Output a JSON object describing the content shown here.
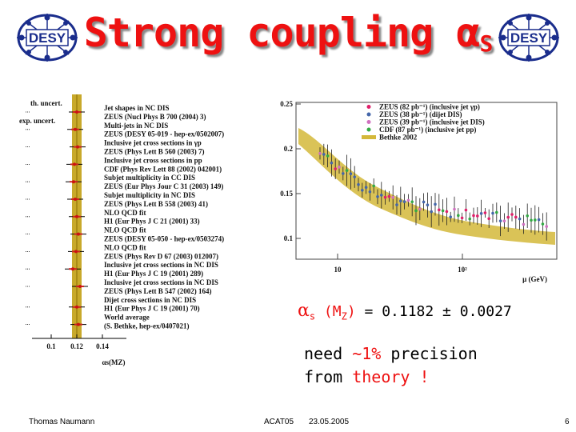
{
  "slide": {
    "title_main": "Strong coupling α",
    "title_sub": "S",
    "logo_text": "DESY",
    "colors": {
      "title": "#ee1111",
      "band": "#c8a92b",
      "highlight": "#ee1111",
      "logo": "#1a2d8c"
    }
  },
  "left_plot": {
    "legend": [
      "th. uncert.",
      "exp. uncert."
    ],
    "entries": [
      "Jet shapes in NC DIS",
      "ZEUS (Nucl Phys B 700 (2004) 3)",
      "Multi-jets in NC DIS",
      "ZEUS (DESY 05-019 - hep-ex/0502007)",
      "Inclusive jet cross sections in γp",
      "ZEUS (Phys Lett B 560 (2003) 7)",
      "Inclusive jet cross sections in pp",
      "CDF (Phys Rev Lett 88 (2002) 042001)",
      "Subjet multiplicity in CC DIS",
      "ZEUS (Eur Phys Jour C 31 (2003) 149)",
      "Subjet multiplicity in NC DIS",
      "ZEUS (Phys Lett B 558 (2003) 41)",
      "NLO QCD fit",
      "H1 (Eur Phys J C 21 (2001) 33)",
      "NLO QCD fit",
      "ZEUS (DESY 05-050 - hep-ex/0503274)",
      "NLO QCD fit",
      "ZEUS (Phys Rev D 67 (2003) 012007)",
      "Inclusive jet cross sections in NC DIS",
      "H1 (Eur Phys J C 19 (2001) 289)",
      "Inclusive jet cross sections in NC DIS",
      "ZEUS (Phys Lett B 547 (2002) 164)",
      "Dijet cross sections in NC DIS",
      "H1 (Eur Phys J C 19 (2001) 70)",
      "World average",
      "(S. Bethke, hep-ex/0407021)"
    ],
    "x_ticks": [
      "0.1",
      "0.12",
      "0.14"
    ],
    "x_label": "αs(MZ)"
  },
  "right_plot": {
    "y_ticks": [
      "0.25",
      "0.2",
      "0.15",
      "0.1"
    ],
    "x_ticks": [
      "10",
      "10²"
    ],
    "x_label": "μ (GeV)",
    "legend": [
      {
        "name": "ZEUS (82 pb⁻¹) (inclusive jet γp)",
        "color": "#e0206a",
        "marker": "circle"
      },
      {
        "name": "ZEUS (38 pb⁻¹) (dijet DIS)",
        "color": "#4466aa",
        "marker": "square"
      },
      {
        "name": "ZEUS (39 pb⁻¹) (inclusive jet DIS)",
        "color": "#d070c0",
        "marker": "triangle"
      },
      {
        "name": "CDF (87 pb⁻¹) (inclusive jet pp)",
        "color": "#33aa44",
        "marker": "triangle-down"
      },
      {
        "name": "Bethke 2002",
        "color": "#d4b83a",
        "marker": "band"
      }
    ]
  },
  "result": {
    "symbol": "α",
    "symbol_sub": "s",
    "arg_open": " (M",
    "arg_sub": "Z",
    "arg_close": ")",
    "value": " = 0.1182 ± 0.0027"
  },
  "precision": {
    "line1_a": "need ",
    "line1_b": "~1%",
    "line1_c": " precision",
    "line2_a": "from ",
    "line2_b": "theory !"
  },
  "footer": {
    "author": "Thomas Naumann",
    "conference": "ACAT05",
    "date": "23.05.2005",
    "page": "6"
  }
}
